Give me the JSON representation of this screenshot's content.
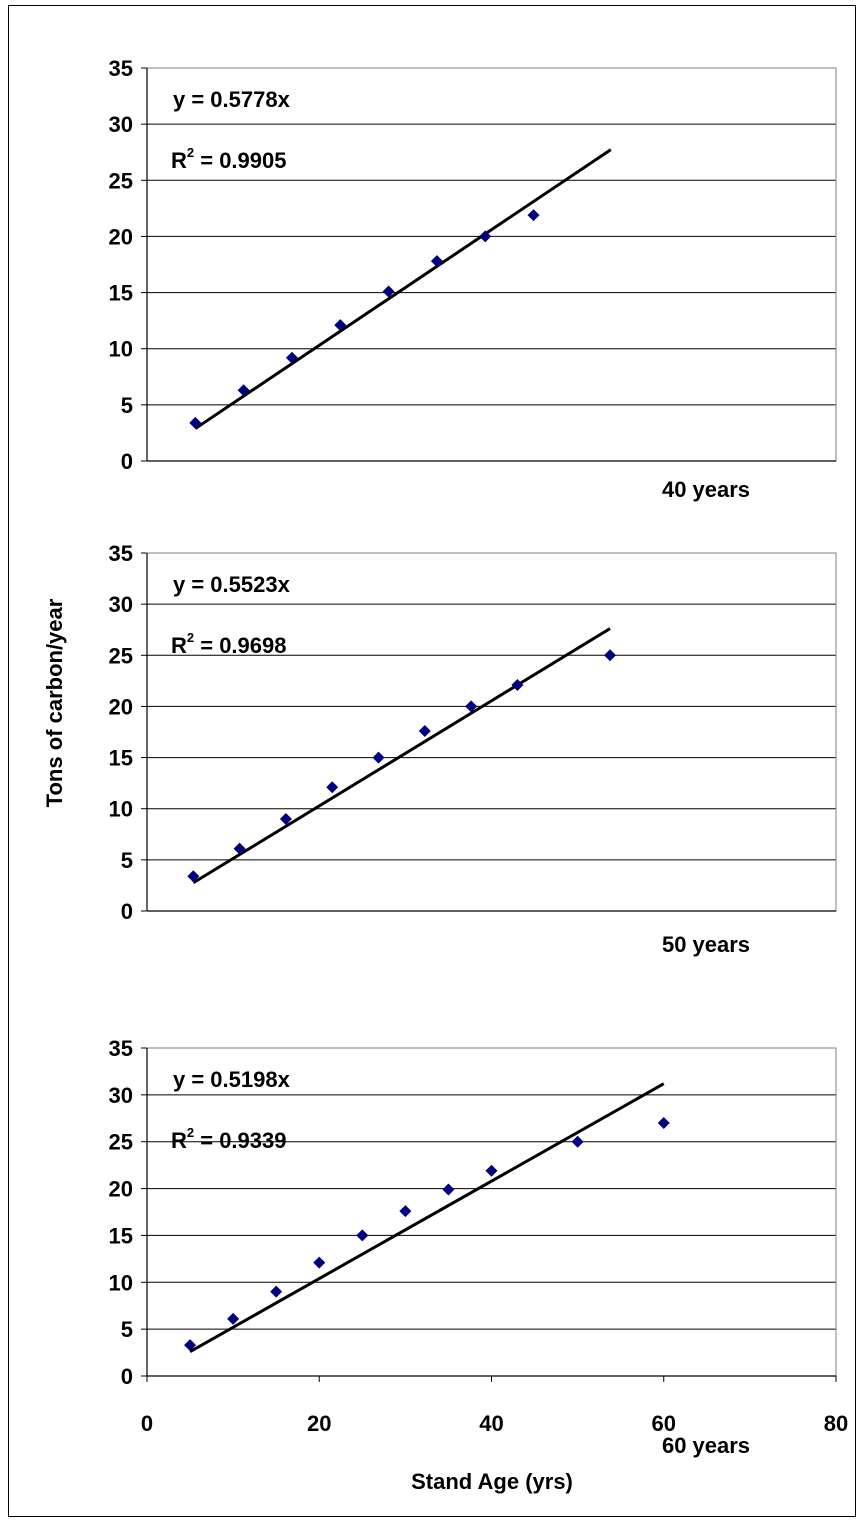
{
  "chart_data": {
    "type": "scatter",
    "ylabel": "Tons of carbon/year",
    "xlabel": "Stand Age (yrs)",
    "x_ticks": [
      "0",
      "20",
      "40",
      "60",
      "80"
    ],
    "y_ticks": [
      "0",
      "5",
      "10",
      "15",
      "20",
      "25",
      "30",
      "35"
    ],
    "marker_color": "#00007f",
    "line_color": "#000000",
    "panels": [
      {
        "label": "40 years",
        "equation": "y = 0.5778x",
        "r2_prefix": "R",
        "r2_sup": "2",
        "r2_value": " = 0.9905",
        "xlim": [
          0,
          80
        ],
        "ylim": [
          0,
          35
        ],
        "slope": 0.5778,
        "trendline_x": [
          5,
          48
        ],
        "points": [
          {
            "x": 5,
            "y": 3.4
          },
          {
            "x": 10,
            "y": 6.3
          },
          {
            "x": 15,
            "y": 9.2
          },
          {
            "x": 20,
            "y": 12.1
          },
          {
            "x": 25,
            "y": 15.1
          },
          {
            "x": 30,
            "y": 17.8
          },
          {
            "x": 35,
            "y": 20.0
          },
          {
            "x": 40,
            "y": 21.9
          }
        ]
      },
      {
        "label": "50 years",
        "equation": "y = 0.5523x",
        "r2_prefix": "R",
        "r2_sup": "2",
        "r2_value": " = 0.9698",
        "xlim": [
          0,
          80
        ],
        "ylim": [
          0,
          35
        ],
        "slope": 0.5523,
        "trendline_x": [
          5,
          50
        ],
        "points": [
          {
            "x": 5,
            "y": 3.4
          },
          {
            "x": 10,
            "y": 6.1
          },
          {
            "x": 15,
            "y": 9.0
          },
          {
            "x": 20,
            "y": 12.1
          },
          {
            "x": 25,
            "y": 15.0
          },
          {
            "x": 30,
            "y": 17.6
          },
          {
            "x": 35,
            "y": 20.0
          },
          {
            "x": 40,
            "y": 22.1
          },
          {
            "x": 50,
            "y": 25.0
          }
        ]
      },
      {
        "label": "60 years",
        "equation": "y = 0.5198x",
        "r2_prefix": "R",
        "r2_sup": "2",
        "r2_value": " = 0.9339",
        "xlim": [
          0,
          80
        ],
        "ylim": [
          0,
          35
        ],
        "slope": 0.5198,
        "trendline_x": [
          5,
          60
        ],
        "points": [
          {
            "x": 5,
            "y": 3.3
          },
          {
            "x": 10,
            "y": 6.1
          },
          {
            "x": 15,
            "y": 9.0
          },
          {
            "x": 20,
            "y": 12.1
          },
          {
            "x": 25,
            "y": 15.0
          },
          {
            "x": 30,
            "y": 17.6
          },
          {
            "x": 35,
            "y": 19.9
          },
          {
            "x": 40,
            "y": 21.9
          },
          {
            "x": 50,
            "y": 25.0
          },
          {
            "x": 60,
            "y": 27.0
          }
        ]
      }
    ]
  }
}
